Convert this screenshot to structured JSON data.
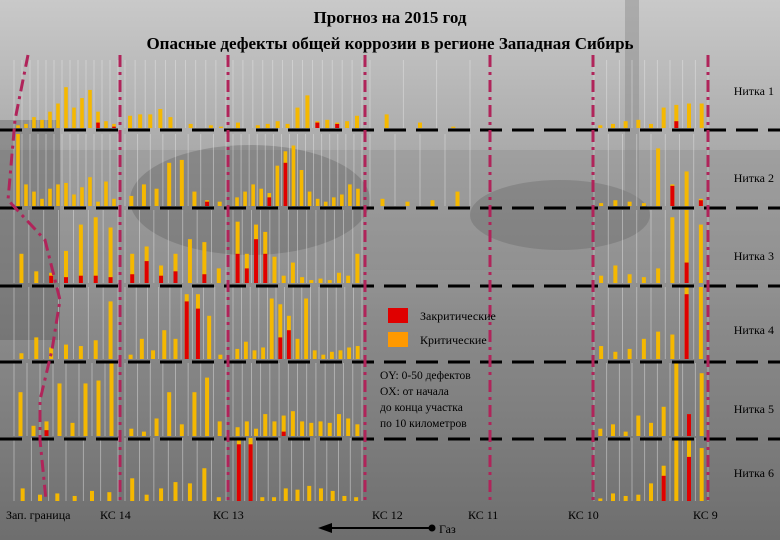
{
  "title": "Прогноз на 2015 год",
  "subtitle": "Опасные дефекты общей коррозии в регионе Западная Сибирь",
  "colors": {
    "critical": "#f5b800",
    "supercritical": "#e00000",
    "boundary": "#b0245a",
    "dashes": "#000000"
  },
  "legend": {
    "supercritical": "Закритические",
    "critical": "Критические"
  },
  "axis_note": [
    "OY: 0-50 дефектов",
    "OX: от начала",
    "до конца участка",
    "по 10 километров"
  ],
  "threads": [
    "Нитка 1",
    "Нитка 2",
    "Нитка 3",
    "Нитка 4",
    "Нитка 5",
    "Нитка 6"
  ],
  "stations": [
    "Зап. граница",
    "КС 14",
    "КС 13",
    "КС 12",
    "КС 11",
    "КС 10",
    "КС 9"
  ],
  "flow_label": "Газ",
  "chart_data": {
    "type": "bar",
    "stacked": true,
    "ylim": [
      0,
      50
    ],
    "ylabel_note": "OY: 0-50 дефектов",
    "xlabel_note": "OX: от начала до конца участка по 10 километров",
    "groups": [
      {
        "thread": "Нитка 1",
        "segments": [
          {
            "section": "Зап. граница – КС 14",
            "critical": [
              2,
              3,
              8,
              6,
              12,
              18,
              30,
              15,
              22,
              28,
              12,
              5,
              3
            ],
            "supercritical": [
              0,
              0,
              0,
              0,
              0,
              0,
              0,
              0,
              0,
              0,
              4,
              0,
              1
            ]
          },
          {
            "section": "КС 14 – КС 13",
            "critical": [
              9,
              10,
              10,
              14,
              8,
              0,
              3,
              0,
              2,
              1
            ],
            "supercritical": [
              0,
              0,
              0,
              0,
              0,
              0,
              0,
              0,
              0,
              0
            ]
          },
          {
            "section": "КС 13 – КС 12",
            "critical": [
              4,
              0,
              2,
              3,
              5,
              3,
              15,
              24,
              5,
              6,
              4,
              5,
              9
            ],
            "supercritical": [
              0,
              0,
              0,
              0,
              0,
              0,
              0,
              0,
              4,
              0,
              3,
              0,
              0
            ]
          },
          {
            "section": "КС 12 – КС 11",
            "critical": [
              10,
              4,
              1
            ],
            "supercritical": [
              0,
              0,
              0
            ]
          },
          {
            "section": "КС 10 – КС 9",
            "critical": [
              2,
              3,
              5,
              6,
              3,
              15,
              17,
              18,
              18
            ],
            "supercritical": [
              0,
              0,
              0,
              0,
              0,
              0,
              5,
              0,
              0
            ]
          }
        ]
      },
      {
        "thread": "Нитка 2",
        "segments": [
          {
            "section": "Зап. граница – КС 14",
            "critical": [
              50,
              15,
              10,
              5,
              12,
              15,
              16,
              8,
              13,
              20,
              3,
              17,
              5
            ],
            "supercritical": [
              0,
              0,
              0,
              0,
              0,
              0,
              0,
              0,
              0,
              0,
              0,
              0,
              0
            ]
          },
          {
            "section": "КС 14 – КС 13",
            "critical": [
              7,
              15,
              12,
              30,
              32,
              10,
              4,
              3
            ],
            "supercritical": [
              0,
              0,
              0,
              0,
              0,
              0,
              3,
              0
            ]
          },
          {
            "section": "КС 13 – КС 12",
            "critical": [
              6,
              10,
              15,
              12,
              9,
              28,
              38,
              42,
              25,
              10,
              5,
              3,
              6,
              8,
              15,
              12
            ],
            "supercritical": [
              0,
              0,
              0,
              0,
              6,
              0,
              30,
              0,
              0,
              0,
              0,
              0,
              0,
              0,
              0,
              0
            ]
          },
          {
            "section": "КС 12 – КС 11",
            "critical": [
              5,
              3,
              4,
              10
            ],
            "supercritical": [
              0,
              0,
              0,
              0
            ]
          },
          {
            "section": "КС 10 – КС 9",
            "critical": [
              2,
              4,
              3,
              2,
              40,
              15,
              24,
              5
            ],
            "supercritical": [
              0,
              0,
              0,
              0,
              0,
              14,
              0,
              4
            ]
          }
        ]
      },
      {
        "thread": "Нитка 3",
        "segments": [
          {
            "section": "Зап. граница – КС 14",
            "critical": [
              20,
              8,
              7,
              22,
              40,
              45,
              38
            ],
            "supercritical": [
              0,
              0,
              5,
              4,
              5,
              5,
              4
            ]
          },
          {
            "section": "КС 14 – КС 13",
            "critical": [
              20,
              25,
              12,
              20,
              30,
              28,
              10
            ],
            "supercritical": [
              6,
              15,
              5,
              8,
              0,
              6,
              0
            ]
          },
          {
            "section": "КС 13 – КС 12",
            "critical": [
              42,
              20,
              40,
              35,
              18,
              5,
              14,
              4,
              2,
              3,
              2,
              7,
              5,
              20
            ],
            "supercritical": [
              20,
              10,
              30,
              20,
              0,
              0,
              0,
              0,
              0,
              0,
              0,
              0,
              0,
              0
            ]
          },
          {
            "section": "КС 10 – КС 9",
            "critical": [
              5,
              12,
              6,
              4,
              10,
              45,
              52,
              40
            ],
            "supercritical": [
              0,
              0,
              0,
              0,
              0,
              0,
              14,
              0
            ]
          }
        ]
      },
      {
        "thread": "Нитка 4",
        "segments": [
          {
            "section": "Зап. граница – КС 14",
            "critical": [
              4,
              15,
              8,
              10,
              9,
              13,
              40
            ],
            "supercritical": [
              0,
              0,
              0,
              0,
              0,
              0,
              0
            ]
          },
          {
            "section": "КС 14 – КС 13",
            "critical": [
              3,
              14,
              6,
              20,
              14,
              45,
              45,
              30,
              3
            ],
            "supercritical": [
              0,
              0,
              0,
              0,
              0,
              40,
              35,
              0,
              0
            ]
          },
          {
            "section": "КС 13 – КС 12",
            "critical": [
              7,
              12,
              6,
              8,
              42,
              38,
              30,
              14,
              42,
              6,
              3,
              5,
              6,
              8,
              9
            ],
            "supercritical": [
              0,
              0,
              0,
              0,
              0,
              15,
              20,
              0,
              0,
              0,
              0,
              0,
              0,
              0,
              0
            ]
          },
          {
            "section": "КС 10 – КС 9",
            "critical": [
              9,
              5,
              7,
              14,
              19,
              17,
              54,
              60
            ],
            "supercritical": [
              0,
              0,
              0,
              0,
              0,
              0,
              45,
              0
            ]
          }
        ]
      },
      {
        "thread": "Нитка 5",
        "segments": [
          {
            "section": "Зап. граница – КС 14",
            "critical": [
              30,
              7,
              10,
              36,
              9,
              36,
              38,
              50
            ],
            "supercritical": [
              0,
              0,
              4,
              0,
              0,
              0,
              0,
              0
            ]
          },
          {
            "section": "КС 14 – КС 13",
            "critical": [
              5,
              3,
              12,
              30,
              8,
              30,
              40,
              10
            ],
            "supercritical": [
              0,
              0,
              0,
              0,
              0,
              0,
              0,
              0
            ]
          },
          {
            "section": "КС 13 – КС 12",
            "critical": [
              6,
              10,
              5,
              15,
              10,
              14,
              17,
              10,
              9,
              10,
              9,
              15,
              12,
              8
            ],
            "supercritical": [
              0,
              0,
              0,
              0,
              0,
              3,
              0,
              0,
              0,
              0,
              0,
              0,
              0,
              0
            ]
          },
          {
            "section": "КС 10 – КС 9",
            "critical": [
              5,
              8,
              3,
              14,
              9,
              20,
              56,
              15,
              43
            ],
            "supercritical": [
              0,
              0,
              0,
              0,
              0,
              0,
              0,
              15,
              0
            ]
          }
        ]
      },
      {
        "thread": "Нитка 6",
        "segments": [
          {
            "section": "Зап. граница – КС 14",
            "critical": [
              10,
              5,
              6,
              4,
              8,
              7
            ],
            "supercritical": [
              0,
              0,
              0,
              0,
              0,
              0
            ]
          },
          {
            "section": "КС 14 – КС 13",
            "critical": [
              18,
              5,
              10,
              15,
              14,
              26,
              3
            ],
            "supercritical": [
              0,
              0,
              0,
              0,
              0,
              0,
              0
            ]
          },
          {
            "section": "КС 13 – КС 12",
            "critical": [
              55,
              55,
              3,
              3,
              10,
              9,
              12,
              10,
              8,
              4,
              3
            ],
            "supercritical": [
              45,
              45,
              0,
              0,
              0,
              0,
              0,
              0,
              0,
              0,
              0
            ]
          },
          {
            "section": "КС 10 – КС 9",
            "critical": [
              2,
              6,
              4,
              5,
              14,
              28,
              48,
              50,
              42
            ],
            "supercritical": [
              0,
              0,
              0,
              0,
              0,
              20,
              0,
              35,
              0
            ]
          }
        ]
      }
    ]
  }
}
